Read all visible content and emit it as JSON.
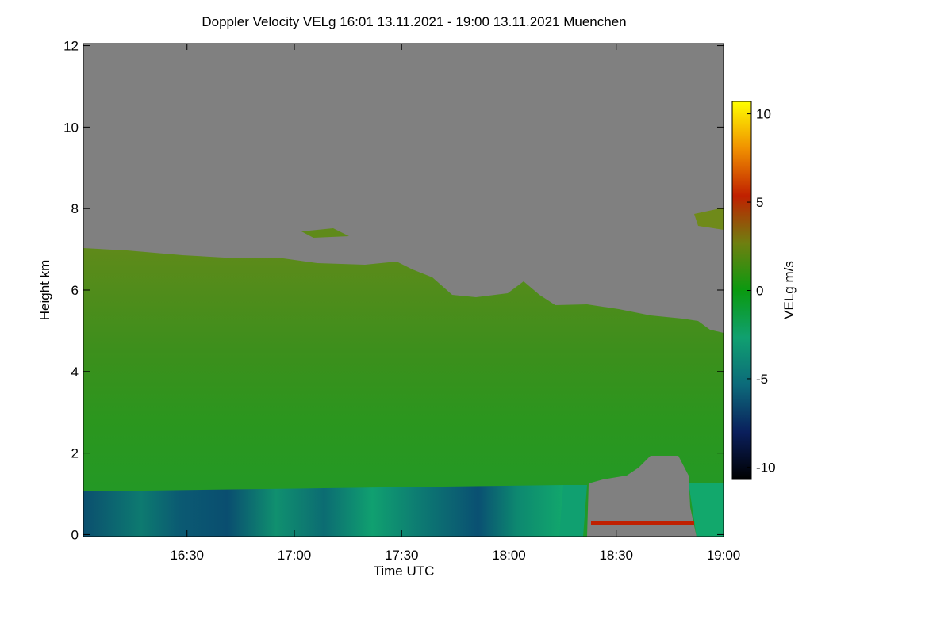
{
  "chart_data": {
    "type": "heatmap",
    "title": "Doppler Velocity VELg   16:01 13.11.2021 - 19:00 13.11.2021 Muenchen",
    "x_label": "Time UTC",
    "y_label": "Height km",
    "colorbar_label": "VELg m/s",
    "xlim": [
      "16:01",
      "19:00"
    ],
    "xticks": [
      "16:30",
      "17:00",
      "17:30",
      "18:00",
      "18:30",
      "19:00"
    ],
    "ylim": [
      -0.05,
      12.05
    ],
    "yticks": [
      0,
      2,
      4,
      6,
      8,
      10,
      12
    ],
    "clim": [
      -10.7,
      10.7
    ],
    "cticks": [
      -10,
      -5,
      0,
      5,
      10
    ],
    "colormap": [
      "#000000",
      "#0a1f5c",
      "#0c6a7a",
      "#10a070",
      "#0a9a10",
      "#6f7f10",
      "#c02000",
      "#f09000",
      "#ffff00"
    ],
    "missing_color": "#808080"
  }
}
